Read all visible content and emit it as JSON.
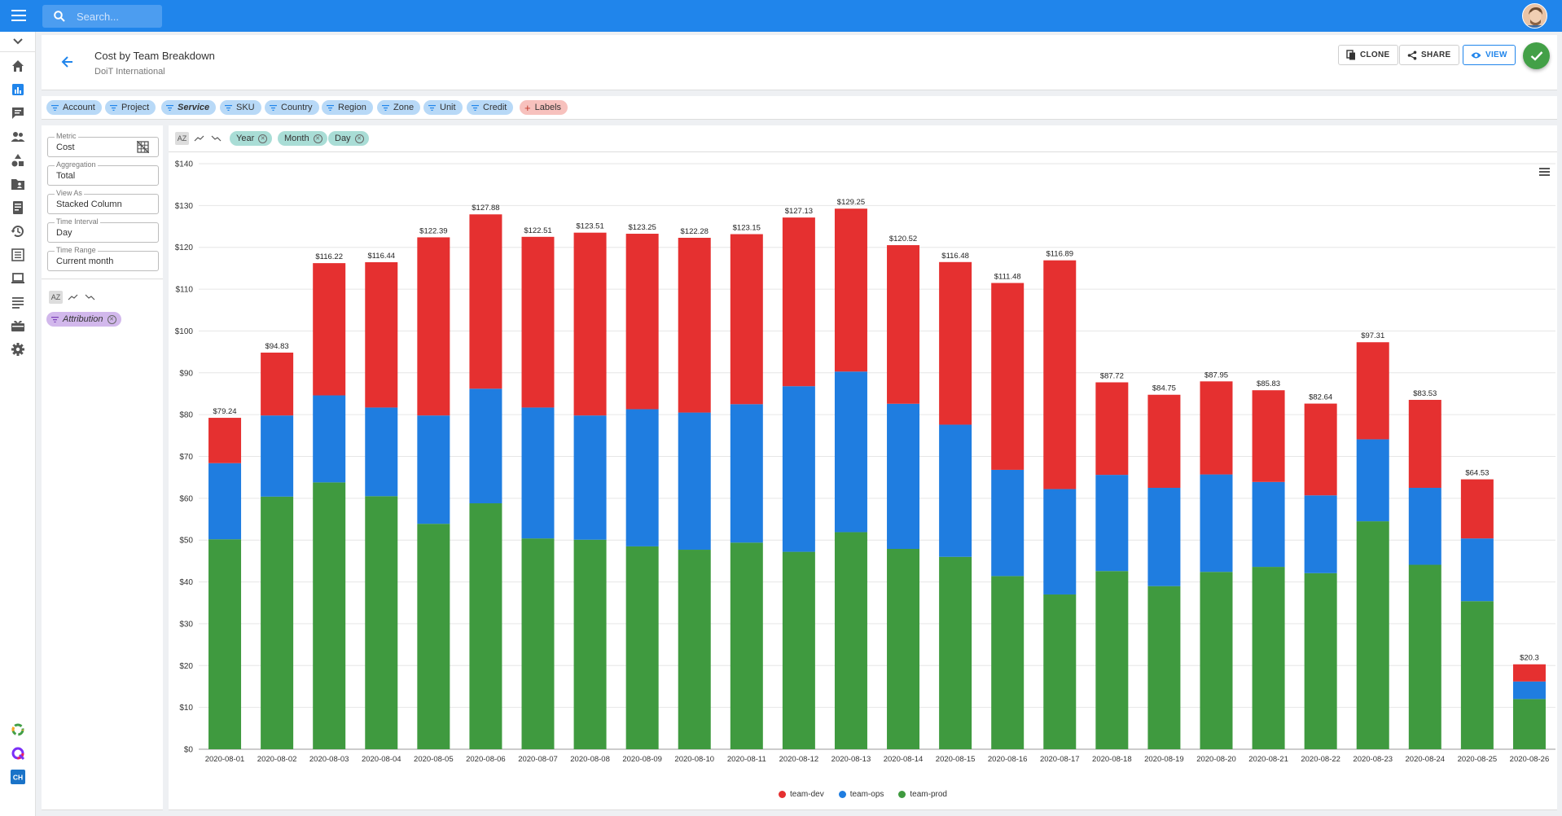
{
  "topbar": {
    "search_placeholder": "Search..."
  },
  "header": {
    "title": "Cost by Team Breakdown",
    "subtitle": "DoiT International",
    "clone_label": "CLONE",
    "share_label": "SHARE",
    "view_label": "VIEW"
  },
  "filters": [
    "Account",
    "Project",
    "Service",
    "SKU",
    "Country",
    "Region",
    "Zone",
    "Unit",
    "Credit"
  ],
  "labels_chip": "Labels",
  "config": {
    "metric": {
      "label": "Metric",
      "value": "Cost"
    },
    "aggregation": {
      "label": "Aggregation",
      "value": "Total"
    },
    "view_as": {
      "label": "View As",
      "value": "Stacked Column"
    },
    "time_interval": {
      "label": "Time Interval",
      "value": "Day"
    },
    "time_range": {
      "label": "Time Range",
      "value": "Current month"
    },
    "sort_az": "AZ",
    "attribution": "Attribution"
  },
  "rows": [
    "Year",
    "Month",
    "Day"
  ],
  "colors": {
    "brand": "#2085eb",
    "team_dev": "#e53030",
    "team_ops": "#1f7de0",
    "team_prod": "#3f9a3f"
  },
  "chart_data": {
    "type": "bar",
    "stacked": true,
    "categories": [
      "2020-08-01",
      "2020-08-02",
      "2020-08-03",
      "2020-08-04",
      "2020-08-05",
      "2020-08-06",
      "2020-08-07",
      "2020-08-08",
      "2020-08-09",
      "2020-08-10",
      "2020-08-11",
      "2020-08-12",
      "2020-08-13",
      "2020-08-14",
      "2020-08-15",
      "2020-08-16",
      "2020-08-17",
      "2020-08-18",
      "2020-08-19",
      "2020-08-20",
      "2020-08-21",
      "2020-08-22",
      "2020-08-23",
      "2020-08-24",
      "2020-08-25",
      "2020-08-26"
    ],
    "series": [
      {
        "name": "team-prod",
        "values": [
          50.2,
          60.4,
          63.8,
          60.5,
          53.9,
          58.8,
          50.4,
          50.1,
          48.5,
          47.7,
          49.4,
          47.2,
          51.9,
          47.9,
          46.0,
          41.4,
          37.0,
          42.6,
          39.0,
          42.4,
          43.6,
          42.1,
          54.5,
          44.1,
          35.4,
          12.0
        ]
      },
      {
        "name": "team-ops",
        "values": [
          18.2,
          19.4,
          20.8,
          21.2,
          25.9,
          27.4,
          31.3,
          29.7,
          32.8,
          32.8,
          33.1,
          39.6,
          38.4,
          34.7,
          31.6,
          25.4,
          25.2,
          23.0,
          23.5,
          23.3,
          20.3,
          18.6,
          19.6,
          18.4,
          15.0,
          4.2
        ]
      },
      {
        "name": "team-dev",
        "values": [
          10.84,
          15.03,
          31.62,
          34.74,
          42.59,
          41.68,
          40.81,
          43.71,
          41.95,
          41.78,
          40.65,
          40.33,
          38.95,
          37.92,
          38.88,
          44.68,
          54.69,
          22.12,
          22.25,
          22.25,
          21.93,
          21.94,
          23.21,
          21.03,
          14.13,
          4.1
        ]
      }
    ],
    "totals": [
      "$79.24",
      "$94.83",
      "$116.22",
      "$116.44",
      "$122.39",
      "$127.88",
      "$122.51",
      "$123.51",
      "$123.25",
      "$122.28",
      "$123.15",
      "$127.13",
      "$129.25",
      "$120.52",
      "$116.48",
      "$111.48",
      "$116.89",
      "$87.72",
      "$84.75",
      "$87.95",
      "$85.83",
      "$82.64",
      "$97.31",
      "$83.53",
      "$64.53",
      "$20.3"
    ],
    "ylim": [
      0,
      140
    ],
    "yticks": [
      "$0",
      "$10",
      "$20",
      "$30",
      "$40",
      "$50",
      "$60",
      "$70",
      "$80",
      "$90",
      "$100",
      "$110",
      "$120",
      "$130",
      "$140"
    ],
    "legend_position": "bottom-center",
    "grid": true
  }
}
